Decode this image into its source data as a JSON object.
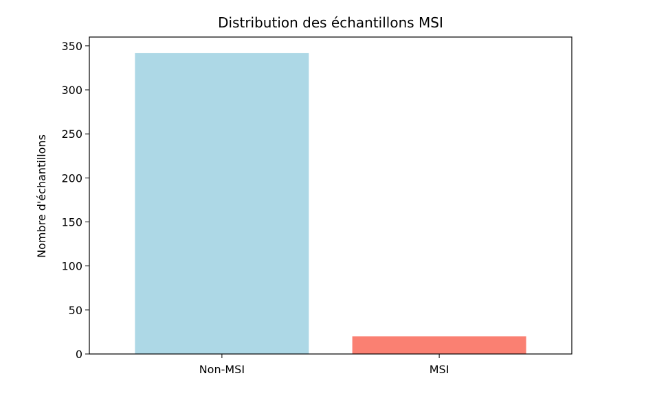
{
  "chart_data": {
    "type": "bar",
    "title": "Distribution des échantillons MSI",
    "xlabel": "",
    "ylabel": "Nombre d'échantillons",
    "categories": [
      "Non-MSI",
      "MSI"
    ],
    "values": [
      342,
      20
    ],
    "bar_colors": [
      "#add8e6",
      "#fa8072"
    ],
    "ylim": [
      0,
      360
    ],
    "yticks": [
      "0",
      "50",
      "100",
      "150",
      "200",
      "250",
      "300",
      "350"
    ],
    "grid": false,
    "legend": "none"
  }
}
